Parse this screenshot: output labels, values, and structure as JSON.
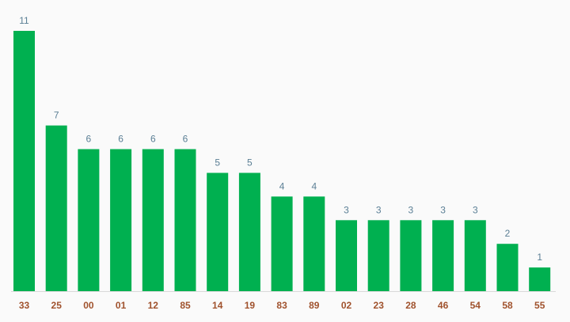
{
  "chart_data": {
    "type": "bar",
    "categories": [
      "33",
      "25",
      "00",
      "01",
      "12",
      "85",
      "14",
      "19",
      "83",
      "89",
      "02",
      "23",
      "28",
      "46",
      "54",
      "58",
      "55"
    ],
    "values": [
      11,
      7,
      6,
      6,
      6,
      6,
      5,
      5,
      4,
      4,
      3,
      3,
      3,
      3,
      3,
      2,
      1
    ],
    "title": "",
    "xlabel": "",
    "ylabel": "",
    "ylim": [
      0,
      11
    ],
    "grid": false,
    "legend": "none",
    "data_labels": true,
    "colors": {
      "bar": "#00b050",
      "value_label": "#5b7f95",
      "category_label": "#a0522d",
      "baseline": "#d9d9d9",
      "background": "#fafafa"
    }
  }
}
